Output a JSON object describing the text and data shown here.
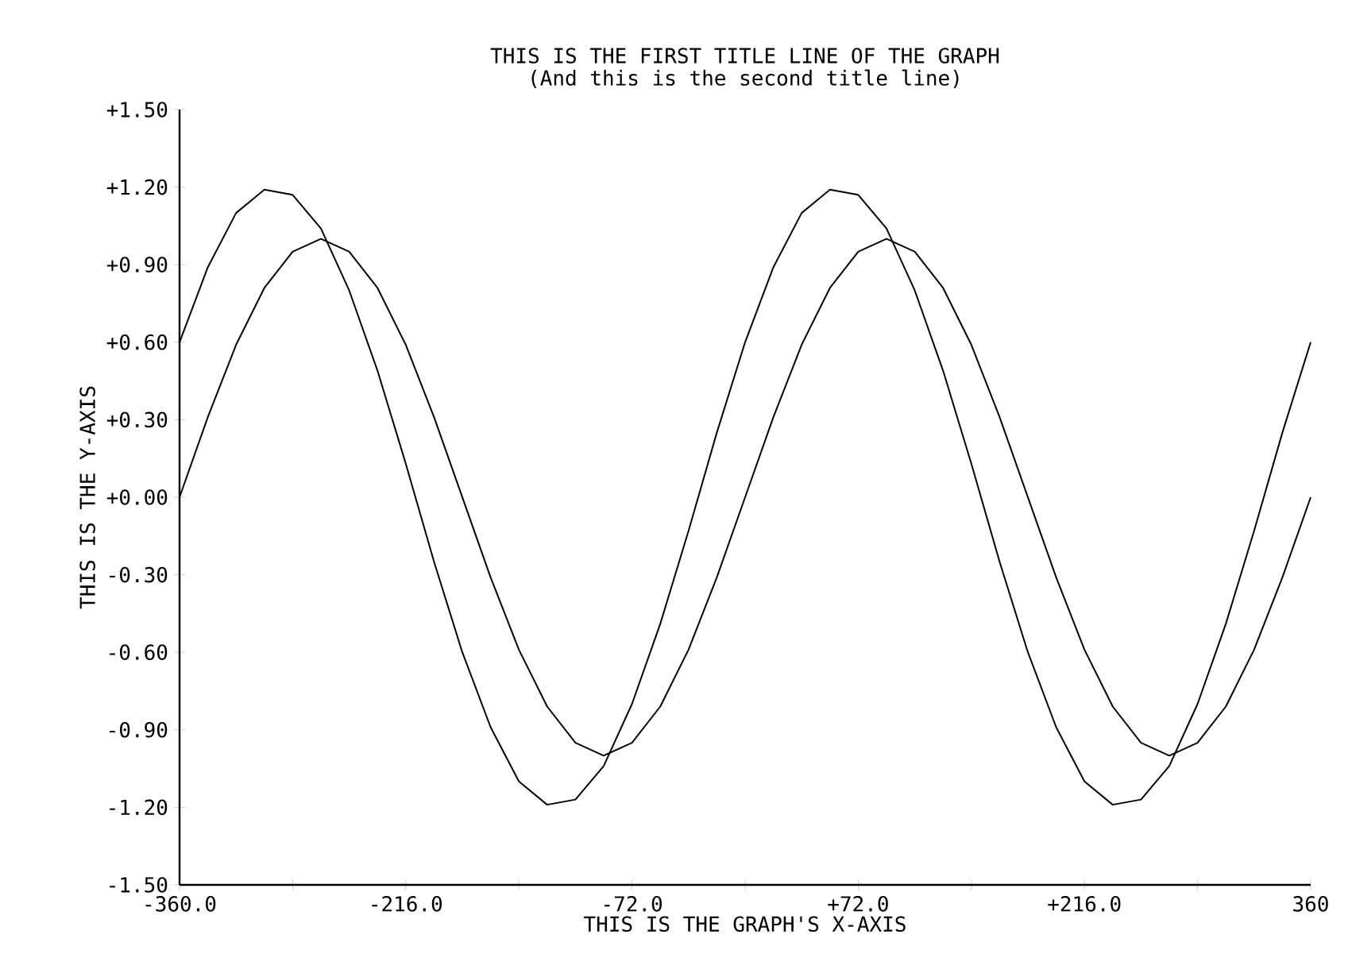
{
  "chart_data": {
    "type": "line",
    "title": "THIS IS THE FIRST TITLE LINE OF THE GRAPH",
    "subtitle": "(And this is the second title line)",
    "xlabel": "THIS IS THE GRAPH'S X-AXIS",
    "ylabel": "THIS IS THE Y-AXIS",
    "x": [
      -360,
      -342,
      -324,
      -306,
      -288,
      -270,
      -252,
      -234,
      -216,
      -198,
      -180,
      -162,
      -144,
      -126,
      -108,
      -90,
      -72,
      -54,
      -36,
      -18,
      0,
      18,
      36,
      54,
      72,
      90,
      108,
      126,
      144,
      162,
      180,
      198,
      216,
      234,
      252,
      270,
      288,
      306,
      324,
      342,
      360
    ],
    "series": [
      {
        "color": "#000000",
        "values": [
          0.6,
          0.89,
          1.1,
          1.19,
          1.17,
          1.04,
          0.8,
          0.49,
          0.13,
          -0.25,
          -0.6,
          -0.89,
          -1.1,
          -1.19,
          -1.17,
          -1.04,
          -0.8,
          -0.49,
          -0.13,
          0.25,
          0.6,
          0.89,
          1.1,
          1.19,
          1.17,
          1.04,
          0.8,
          0.49,
          0.13,
          -0.25,
          -0.6,
          -0.89,
          -1.1,
          -1.19,
          -1.17,
          -1.04,
          -0.8,
          -0.49,
          -0.13,
          0.25,
          0.6
        ]
      },
      {
        "color": "#000000",
        "values": [
          0,
          0.31,
          0.59,
          0.81,
          0.95,
          1,
          0.95,
          0.81,
          0.59,
          0.31,
          0,
          -0.31,
          -0.59,
          -0.81,
          -0.95,
          -1,
          -0.95,
          -0.81,
          -0.59,
          -0.31,
          0,
          0.31,
          0.59,
          0.81,
          0.95,
          1,
          0.95,
          0.81,
          0.59,
          0.31,
          0,
          -0.31,
          -0.59,
          -0.81,
          -0.95,
          -1,
          -0.95,
          -0.81,
          -0.59,
          -0.31,
          0
        ]
      }
    ],
    "xlim": [
      -360,
      360
    ],
    "ylim": [
      -1.5,
      1.5
    ],
    "xticks": [
      {
        "value": -360,
        "label": "-360.0"
      },
      {
        "value": -288,
        "label": null
      },
      {
        "value": -216,
        "label": "-216.0"
      },
      {
        "value": -144,
        "label": null
      },
      {
        "value": -72,
        "label": "-72.0"
      },
      {
        "value": 0,
        "label": null
      },
      {
        "value": 72,
        "label": "+72.0"
      },
      {
        "value": 144,
        "label": null
      },
      {
        "value": 216,
        "label": "+216.0"
      },
      {
        "value": 288,
        "label": null
      },
      360
    ],
    "yticks": [
      {
        "value": -1.5,
        "label": "-1.50"
      },
      {
        "value": -1.2,
        "label": "-1.20"
      },
      {
        "value": -0.9,
        "label": "-0.90"
      },
      {
        "value": -0.6,
        "label": "-0.60"
      },
      {
        "value": -0.3,
        "label": "-0.30"
      },
      {
        "value": 0,
        "label": "+0.00"
      },
      {
        "value": 0.3,
        "label": "+0.30"
      },
      {
        "value": 0.6,
        "label": "+0.60"
      },
      {
        "value": 0.9,
        "label": "+0.90"
      },
      {
        "value": 1.2,
        "label": "+1.20"
      },
      {
        "value": 1.5,
        "label": "+1.50"
      }
    ]
  }
}
